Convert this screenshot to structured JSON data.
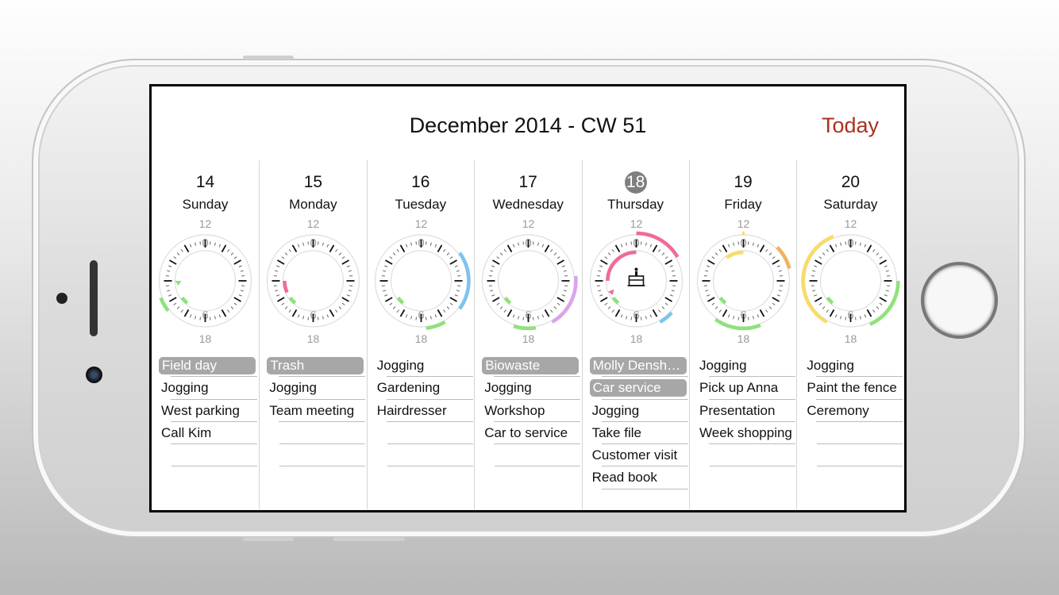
{
  "header": {
    "title": "December 2014 - CW 51",
    "today_label": "Today"
  },
  "colors": {
    "accent": "#a8321e",
    "green": "#8ee27a",
    "pink": "#f06b96",
    "blue": "#7cc4f0",
    "purple": "#dba4ea",
    "yellow": "#f7dc6a",
    "orange": "#f3b25e",
    "highlight": "#a7a7a7"
  },
  "clock_labels": {
    "top": "12",
    "bottom": "18",
    "inner_top": "0",
    "inner_bottom": "6"
  },
  "days": [
    {
      "num": "14",
      "name": "Sunday",
      "current": false,
      "tasks": [
        {
          "t": "Field day",
          "hl": true
        },
        {
          "t": "Jogging"
        },
        {
          "t": "West parking"
        },
        {
          "t": "Call Kim"
        },
        {
          "t": ""
        }
      ],
      "arcs": [
        {
          "ring": "outer",
          "from": 19.7,
          "to": 20.3,
          "color": "green"
        },
        {
          "ring": "inner",
          "from": 7.3,
          "to": 7.8,
          "color": "green"
        }
      ],
      "markers": [
        {
          "ring": "inner",
          "at": 9,
          "color": "green"
        }
      ]
    },
    {
      "num": "15",
      "name": "Monday",
      "current": false,
      "tasks": [
        {
          "t": "Trash",
          "hl": true
        },
        {
          "t": "Jogging"
        },
        {
          "t": "Team meeting"
        },
        {
          "t": ""
        },
        {
          "t": ""
        }
      ],
      "arcs": [
        {
          "ring": "inner",
          "from": 8.2,
          "to": 9,
          "color": "pink"
        },
        {
          "ring": "inner",
          "from": 7.3,
          "to": 7.8,
          "color": "green"
        }
      ],
      "markers": []
    },
    {
      "num": "16",
      "name": "Tuesday",
      "current": false,
      "tasks": [
        {
          "t": "Jogging"
        },
        {
          "t": "Gardening"
        },
        {
          "t": "Hairdresser"
        },
        {
          "t": ""
        },
        {
          "t": ""
        }
      ],
      "arcs": [
        {
          "ring": "outer",
          "from": 13.8,
          "to": 16.2,
          "color": "blue"
        },
        {
          "ring": "outer",
          "from": 17,
          "to": 17.8,
          "color": "green"
        },
        {
          "ring": "inner",
          "from": 7.3,
          "to": 7.8,
          "color": "green"
        }
      ],
      "markers": []
    },
    {
      "num": "17",
      "name": "Wednesday",
      "current": false,
      "tasks": [
        {
          "t": "Biowaste",
          "hl": true
        },
        {
          "t": "Jogging"
        },
        {
          "t": "Workshop"
        },
        {
          "t": "Car to service"
        },
        {
          "t": ""
        }
      ],
      "arcs": [
        {
          "ring": "outer",
          "from": 14.8,
          "to": 17,
          "color": "purple"
        },
        {
          "ring": "outer",
          "from": 17.7,
          "to": 18.6,
          "color": "green"
        },
        {
          "ring": "inner",
          "from": 7.3,
          "to": 7.8,
          "color": "green"
        }
      ],
      "markers": []
    },
    {
      "num": "18",
      "name": "Thursday",
      "current": true,
      "tasks": [
        {
          "t": "Molly Densh…",
          "hl": true
        },
        {
          "t": "Car service",
          "hl": true
        },
        {
          "t": "Jogging"
        },
        {
          "t": "Take file"
        },
        {
          "t": "Customer visit"
        },
        {
          "t": "Read book"
        }
      ],
      "arcs": [
        {
          "ring": "outer",
          "from": 12,
          "to": 14,
          "color": "pink"
        },
        {
          "ring": "inner",
          "from": 9,
          "to": 12,
          "color": "pink"
        },
        {
          "ring": "outer",
          "from": 16.4,
          "to": 17,
          "color": "blue"
        },
        {
          "ring": "inner",
          "from": 7.3,
          "to": 7.8,
          "color": "green"
        }
      ],
      "markers": [
        {
          "ring": "inner",
          "at": 8.3,
          "color": "pink"
        }
      ],
      "birthday": true
    },
    {
      "num": "19",
      "name": "Friday",
      "current": false,
      "tasks": [
        {
          "t": "Jogging"
        },
        {
          "t": "Pick up Anna"
        },
        {
          "t": "Presentation"
        },
        {
          "t": "Week shopping"
        },
        {
          "t": ""
        }
      ],
      "arcs": [
        {
          "ring": "outer",
          "from": 11.95,
          "to": 12.05,
          "color": "yellow"
        },
        {
          "ring": "outer",
          "from": 13.5,
          "to": 14.5,
          "color": "orange"
        },
        {
          "ring": "inner",
          "from": 10.8,
          "to": 12,
          "color": "yellow"
        },
        {
          "ring": "outer",
          "from": 17.3,
          "to": 19.2,
          "color": "green"
        },
        {
          "ring": "inner",
          "from": 7.3,
          "to": 7.8,
          "color": "green"
        }
      ],
      "markers": []
    },
    {
      "num": "20",
      "name": "Saturday",
      "current": false,
      "tasks": [
        {
          "t": "Jogging"
        },
        {
          "t": "Paint the fence"
        },
        {
          "t": "Ceremony"
        },
        {
          "t": ""
        },
        {
          "t": ""
        }
      ],
      "arcs": [
        {
          "ring": "outer",
          "from": 19,
          "to": 23.3,
          "color": "yellow"
        },
        {
          "ring": "outer",
          "from": 15,
          "to": 17.2,
          "color": "green"
        },
        {
          "ring": "inner",
          "from": 7.3,
          "to": 7.8,
          "color": "green"
        }
      ],
      "markers": []
    }
  ]
}
